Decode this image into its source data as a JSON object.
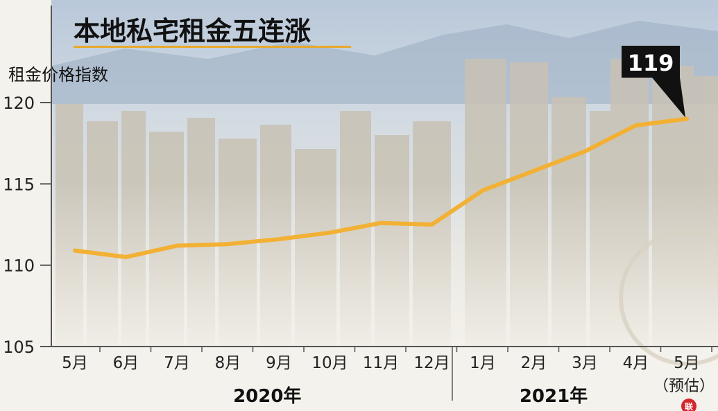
{
  "chart_data": {
    "type": "line",
    "title": "本地私宅租金五连涨",
    "ylabel": "租金价格指数",
    "ylim": [
      105,
      120
    ],
    "yticks": [
      105,
      110,
      115,
      120
    ],
    "categories": [
      "5月",
      "6月",
      "7月",
      "8月",
      "9月",
      "10月",
      "11月",
      "12月",
      "1月",
      "2月",
      "3月",
      "4月",
      "5月"
    ],
    "category_sublabels": [
      "",
      "",
      "",
      "",
      "",
      "",
      "",
      "",
      "",
      "",
      "",
      "",
      "（预估）"
    ],
    "year_groups": [
      {
        "label": "2020年",
        "start": 0,
        "end": 7
      },
      {
        "label": "2021年",
        "start": 8,
        "end": 12
      }
    ],
    "series": [
      {
        "values": [
          110.9,
          110.5,
          111.2,
          111.3,
          111.6,
          112.0,
          112.6,
          112.5,
          114.6,
          115.8,
          117.0,
          118.6,
          119.0
        ]
      }
    ],
    "annotation": {
      "text": "119",
      "index": 12
    },
    "grid": false,
    "colors": {
      "line": "#f2b134",
      "axis": "#555555",
      "callout_bg": "#111111",
      "callout_text": "#ffffff"
    }
  },
  "page": {
    "logo_text": "联"
  }
}
